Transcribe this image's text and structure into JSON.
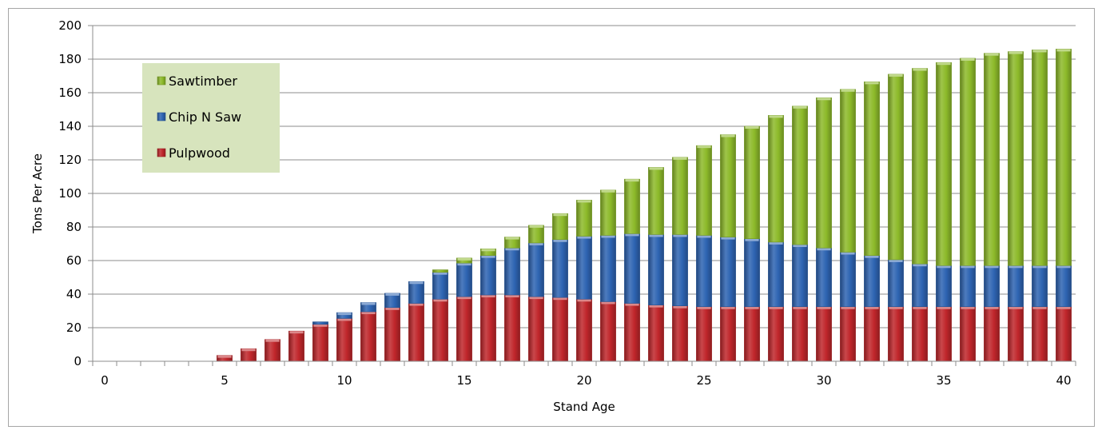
{
  "chart_data": {
    "type": "bar",
    "stacked": true,
    "title": "",
    "xlabel": "Stand Age",
    "ylabel": "Tons Per Acre",
    "xlim": [
      -0.5,
      40.5
    ],
    "ylim": [
      0,
      200
    ],
    "x_ticks": [
      0,
      5,
      10,
      15,
      20,
      25,
      30,
      35,
      40
    ],
    "y_ticks": [
      0,
      20,
      40,
      60,
      80,
      100,
      120,
      140,
      160,
      180,
      200
    ],
    "grid": true,
    "legend_position": "upper-left inside plot",
    "x": [
      5,
      6,
      7,
      8,
      9,
      10,
      11,
      12,
      13,
      14,
      15,
      16,
      17,
      18,
      19,
      20,
      21,
      22,
      23,
      24,
      25,
      26,
      27,
      28,
      29,
      30,
      31,
      32,
      33,
      34,
      35,
      36,
      37,
      38,
      39,
      40
    ],
    "series": [
      {
        "name": "Pulpwood",
        "color": "#c0262b",
        "values": [
          3.5,
          7.5,
          13,
          18,
          22,
          25.5,
          29.5,
          32,
          34.5,
          37,
          38.5,
          39.5,
          39.5,
          38.5,
          38,
          37,
          35.5,
          34.5,
          33.5,
          33,
          32.5,
          32.5,
          32.5,
          32.5,
          32.5,
          32.5,
          32.5,
          32.5,
          32.5,
          32.5,
          32.5,
          32.5,
          32.5,
          32.5,
          32.5,
          32.5
        ]
      },
      {
        "name": "Chip N Saw",
        "color": "#2e64b2",
        "values": [
          0,
          0,
          0,
          0,
          1.5,
          3.5,
          5.5,
          8.5,
          13,
          16,
          20,
          23.5,
          28,
          32,
          34.5,
          37.5,
          39.5,
          41.5,
          42,
          42.5,
          42.5,
          41.5,
          40.5,
          38.5,
          37,
          35,
          32.5,
          30.5,
          28,
          25.5,
          24.5,
          24.5,
          24.5,
          24.5,
          24.5,
          24.5
        ]
      },
      {
        "name": "Sawtimber",
        "color": "#8dba2a",
        "values": [
          0,
          0,
          0,
          0,
          0,
          0,
          0,
          0,
          0,
          1.5,
          3,
          4,
          6.5,
          10.5,
          15.5,
          21.5,
          27,
          32.5,
          40,
          46,
          53.5,
          61,
          67,
          75.5,
          82.5,
          89.5,
          97,
          103.5,
          110.5,
          116.5,
          121,
          123.5,
          126.5,
          127.5,
          128.5,
          129
        ]
      }
    ]
  }
}
